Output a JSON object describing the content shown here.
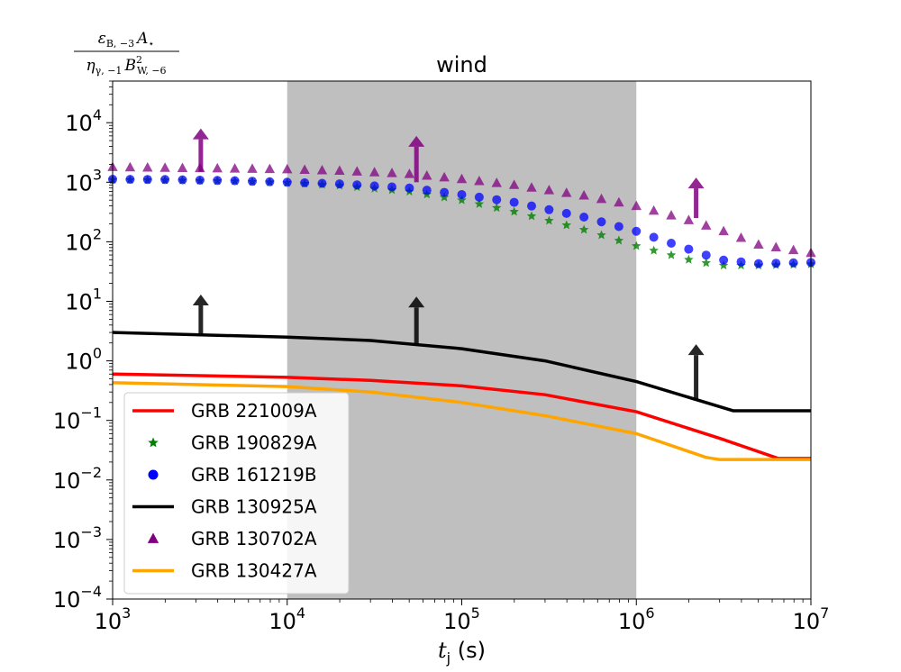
{
  "chart_data": {
    "type": "line",
    "title": "wind",
    "xlabel": {
      "var": "t",
      "sub": "j",
      "unit": " (s)"
    },
    "ylabel": {
      "numerator": {
        "eps": "ε",
        "eps_sub": "B, −3",
        "A": "A",
        "A_sub": "⋆"
      },
      "denominator": {
        "eta": "η",
        "eta_sub": "γ, −1",
        "B": "B",
        "B_sup": "2",
        "B_sub": "W, −6"
      }
    },
    "xscale": "log",
    "yscale": "log",
    "xlim": [
      1000,
      10000000
    ],
    "ylim": [
      0.0001,
      50000
    ],
    "xticks": [
      {
        "value": 1000,
        "base": "10",
        "exp": "3"
      },
      {
        "value": 10000,
        "base": "10",
        "exp": "4"
      },
      {
        "value": 100000,
        "base": "10",
        "exp": "5"
      },
      {
        "value": 1000000,
        "base": "10",
        "exp": "6"
      },
      {
        "value": 10000000,
        "base": "10",
        "exp": "7"
      }
    ],
    "yticks": [
      {
        "value": 0.0001,
        "base": "10",
        "exp": "−4"
      },
      {
        "value": 0.001,
        "base": "10",
        "exp": "−3"
      },
      {
        "value": 0.01,
        "base": "10",
        "exp": "−2"
      },
      {
        "value": 0.1,
        "base": "10",
        "exp": "−1"
      },
      {
        "value": 1,
        "base": "10",
        "exp": "0"
      },
      {
        "value": 10,
        "base": "10",
        "exp": "1"
      },
      {
        "value": 100,
        "base": "10",
        "exp": "2"
      },
      {
        "value": 1000,
        "base": "10",
        "exp": "3"
      },
      {
        "value": 10000,
        "base": "10",
        "exp": "4"
      }
    ],
    "shaded_region": {
      "x": [
        10000,
        1000000
      ],
      "color": "#bfbfbf"
    },
    "legend_placement": "lower-left",
    "series": [
      {
        "name": "GRB 221009A",
        "style": "line",
        "color": "#ff0000",
        "x": [
          1000,
          10000,
          30000,
          100000,
          300000,
          1000000,
          3000000,
          6500000,
          10000000
        ],
        "y": [
          0.6,
          0.53,
          0.47,
          0.38,
          0.27,
          0.14,
          0.05,
          0.023,
          0.023
        ]
      },
      {
        "name": "GRB 190829A",
        "style": "star",
        "color": "#008000",
        "x": [
          1000,
          2000,
          5000,
          10000,
          20000,
          50000,
          100000,
          200000,
          500000,
          1000000,
          2000000,
          3000000,
          5000000,
          10000000
        ],
        "y": [
          1100,
          1080,
          1040,
          980,
          880,
          700,
          500,
          320,
          160,
          85,
          50,
          40,
          40,
          42
        ]
      },
      {
        "name": "GRB 161219B",
        "style": "circle",
        "color": "#0000ff",
        "x": [
          1000,
          2000,
          5000,
          10000,
          20000,
          50000,
          100000,
          200000,
          500000,
          1000000,
          2000000,
          3000000,
          5000000,
          10000000
        ],
        "y": [
          1120,
          1110,
          1060,
          1000,
          940,
          800,
          620,
          460,
          260,
          150,
          75,
          50,
          43,
          45
        ]
      },
      {
        "name": "GRB 130925A",
        "style": "line",
        "color": "#000000",
        "x": [
          1000,
          10000,
          30000,
          100000,
          300000,
          1000000,
          3000000,
          3600000,
          10000000
        ],
        "y": [
          3.0,
          2.5,
          2.2,
          1.6,
          1.0,
          0.45,
          0.17,
          0.145,
          0.145
        ]
      },
      {
        "name": "GRB 130702A",
        "style": "triangle",
        "color": "#800080",
        "x": [
          1000,
          2000,
          5000,
          10000,
          20000,
          50000,
          100000,
          200000,
          500000,
          1000000,
          2000000,
          3000000,
          5000000,
          10000000
        ],
        "y": [
          1800,
          1750,
          1700,
          1650,
          1560,
          1380,
          1130,
          900,
          600,
          400,
          230,
          160,
          90,
          65
        ]
      },
      {
        "name": "GRB 130427A",
        "style": "line",
        "color": "#ffa500",
        "x": [
          1000,
          10000,
          30000,
          100000,
          300000,
          1000000,
          2500000,
          3000000,
          10000000
        ],
        "y": [
          0.43,
          0.37,
          0.3,
          0.2,
          0.12,
          0.06,
          0.024,
          0.022,
          0.022
        ]
      }
    ],
    "arrows": [
      {
        "x": 3200,
        "y0": 1500,
        "y1": 8000,
        "color": "#800080"
      },
      {
        "x": 55000,
        "y0": 1000,
        "y1": 6000,
        "color": "#800080"
      },
      {
        "x": 2200000,
        "y0": 250,
        "y1": 1200,
        "color": "#800080"
      },
      {
        "x": 3200,
        "y0": 2.6,
        "y1": 13,
        "color": "#000000"
      },
      {
        "x": 55000,
        "y0": 1.8,
        "y1": 12,
        "color": "#000000"
      },
      {
        "x": 2200000,
        "y0": 0.22,
        "y1": 1.9,
        "color": "#000000"
      }
    ]
  }
}
